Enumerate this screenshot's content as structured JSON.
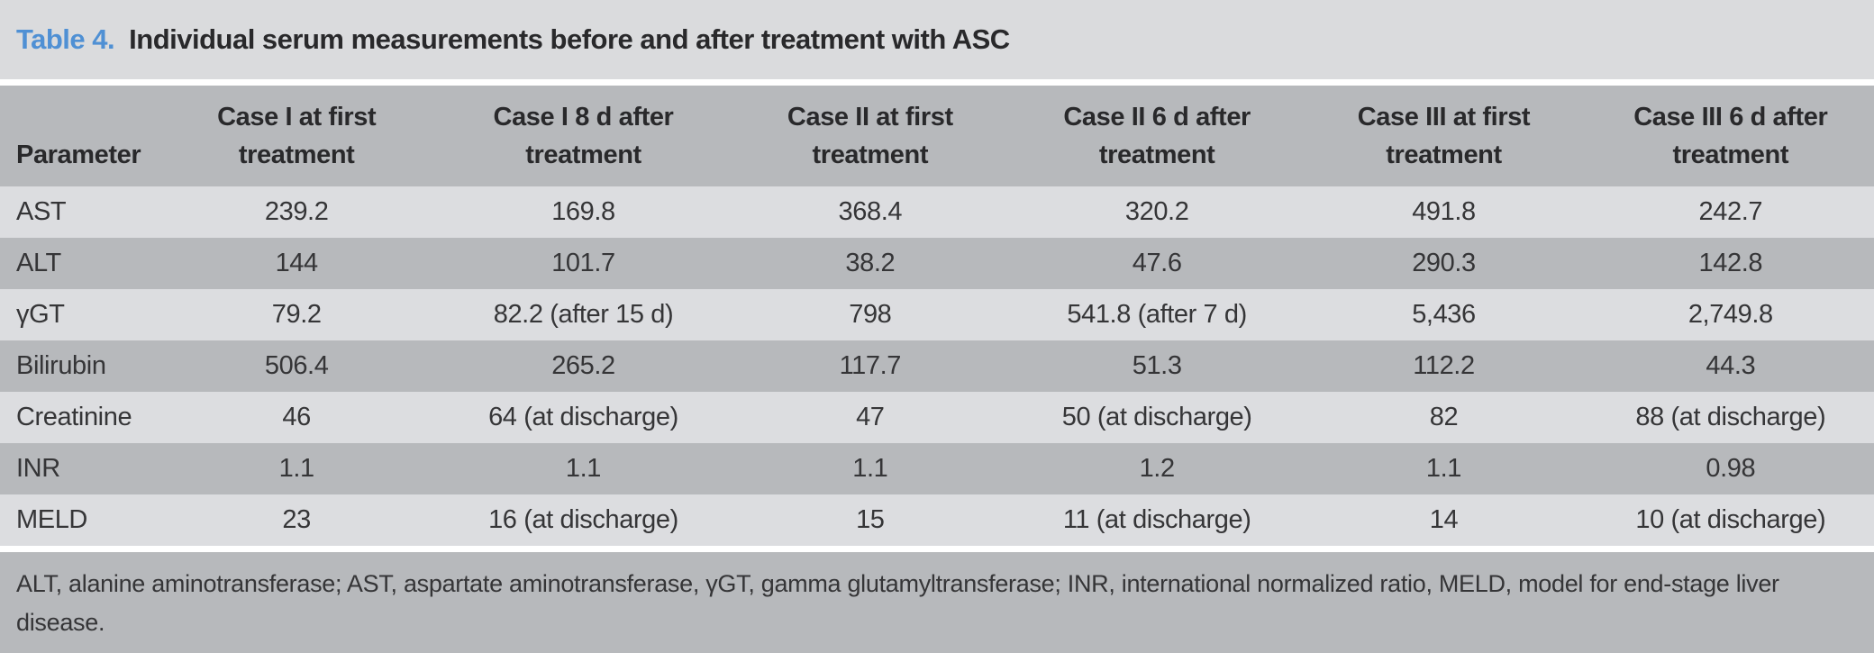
{
  "title": {
    "label": "Table 4.",
    "text": "Individual serum measurements before and after treatment with ASC"
  },
  "table": {
    "columns": [
      "Parameter",
      "Case I at first\ntreatment",
      "Case I 8 d after\ntreatment",
      "Case II at first\ntreatment",
      "Case II 6 d after\ntreatment",
      "Case III at first\ntreatment",
      "Case III 6 d after\ntreatment"
    ],
    "rows": [
      {
        "parameter": "AST",
        "values": [
          "239.2",
          "169.8",
          "368.4",
          "320.2",
          "491.8",
          "242.7"
        ]
      },
      {
        "parameter": "ALT",
        "values": [
          "144",
          "101.7",
          "38.2",
          "47.6",
          "290.3",
          "142.8"
        ]
      },
      {
        "parameter": "γGT",
        "values": [
          "79.2",
          "82.2 (after 15 d)",
          "798",
          "541.8 (after 7 d)",
          "5,436",
          "2,749.8"
        ]
      },
      {
        "parameter": "Bilirubin",
        "values": [
          "506.4",
          "265.2",
          "117.7",
          "51.3",
          "112.2",
          "44.3"
        ]
      },
      {
        "parameter": "Creatinine",
        "values": [
          "46",
          "64 (at discharge)",
          "47",
          "50 (at discharge)",
          "82",
          "88 (at discharge)"
        ]
      },
      {
        "parameter": "INR",
        "values": [
          "1.1",
          "1.1",
          "1.1",
          "1.2",
          "1.1",
          "0.98"
        ]
      },
      {
        "parameter": "MELD",
        "values": [
          "23",
          "16 (at discharge)",
          "15",
          "11 (at discharge)",
          "14",
          "10 (at discharge)"
        ]
      }
    ]
  },
  "footnote": "ALT, alanine aminotransferase; AST, aspartate aminotransferase, γGT, gamma glutamyltransferase; INR, international normalized ratio, MELD, model for end-stage liver\ndisease.",
  "colors": {
    "accent_blue": "#4f90d4",
    "title_bar_bg": "#dadbdd",
    "row_light": "#dcdde0",
    "row_dark": "#b7b9bc",
    "text_dark": "#29292b",
    "text_body": "#353537"
  }
}
